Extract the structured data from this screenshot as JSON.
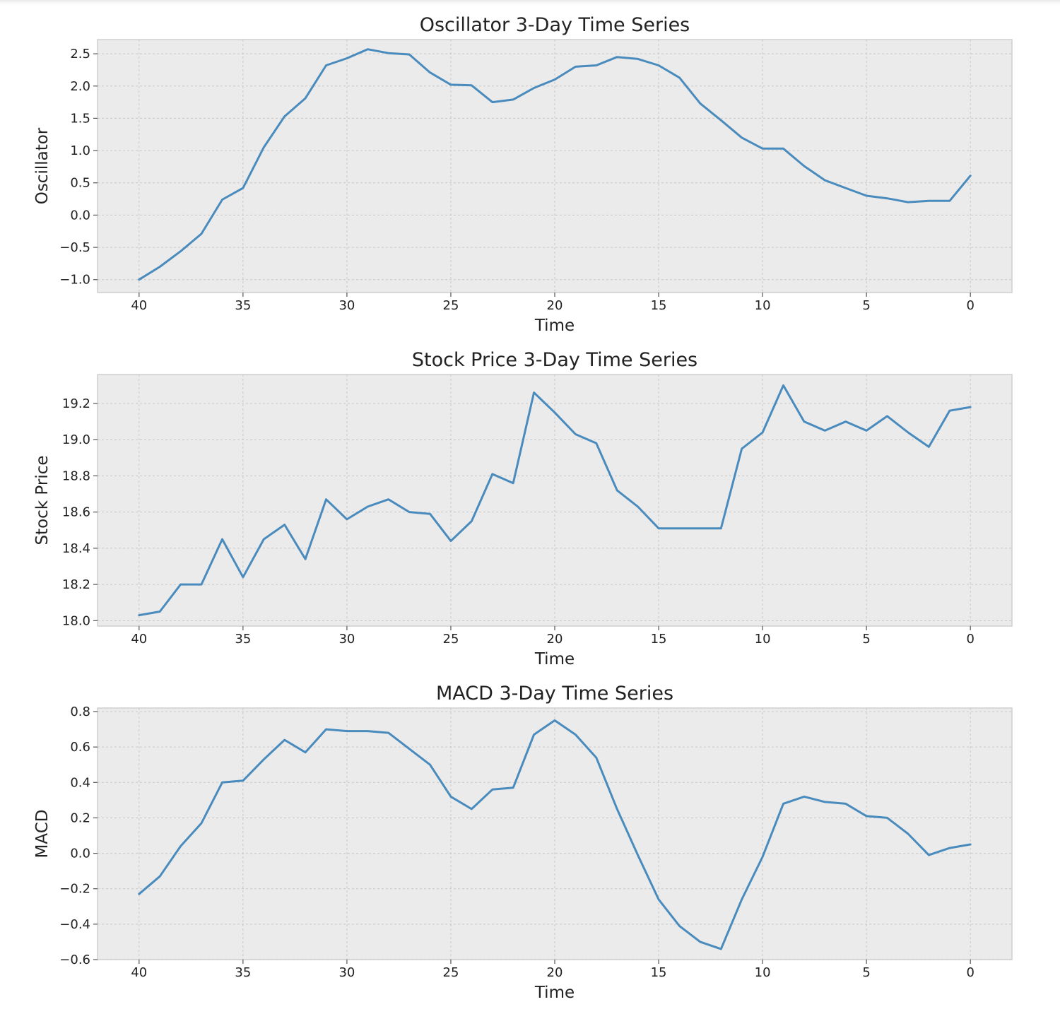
{
  "colors": {
    "series": "#4a8bbd",
    "background": "#ebebeb"
  },
  "chart_data": [
    {
      "type": "line",
      "title": "Oscillator 3-Day Time Series",
      "xlabel": "Time",
      "ylabel": "Oscillator",
      "x_inverted": true,
      "grid": true,
      "xlim": [
        42,
        -2
      ],
      "ylim": [
        -1.2,
        2.72
      ],
      "xticks": [
        40,
        35,
        30,
        25,
        20,
        15,
        10,
        5,
        0
      ],
      "xtick_labels": [
        "40",
        "35",
        "30",
        "25",
        "20",
        "15",
        "10",
        "5",
        "0"
      ],
      "yticks": [
        -1.0,
        -0.5,
        0.0,
        0.5,
        1.0,
        1.5,
        2.0,
        2.5
      ],
      "ytick_labels": [
        "−1.0",
        "−0.5",
        "0.0",
        "0.5",
        "1.0",
        "1.5",
        "2.0",
        "2.5"
      ],
      "x": [
        40,
        39,
        38,
        37,
        36,
        35,
        34,
        33,
        32,
        31,
        30,
        29,
        28,
        27,
        26,
        25,
        24,
        23,
        22,
        21,
        20,
        19,
        18,
        17,
        16,
        15,
        14,
        13,
        12,
        11,
        10,
        9,
        8,
        7,
        6,
        5,
        4,
        3,
        2,
        1,
        0
      ],
      "values": [
        -1.0,
        -0.8,
        -0.56,
        -0.29,
        0.24,
        0.42,
        1.05,
        1.53,
        1.81,
        2.32,
        2.43,
        2.57,
        2.51,
        2.49,
        2.21,
        2.02,
        2.01,
        1.75,
        1.79,
        1.97,
        2.1,
        2.3,
        2.32,
        2.45,
        2.42,
        2.32,
        2.13,
        1.73,
        1.47,
        1.2,
        1.03,
        1.03,
        0.76,
        0.54,
        0.42,
        0.3,
        0.26,
        0.2,
        0.22,
        0.22,
        0.61
      ]
    },
    {
      "type": "line",
      "title": "Stock Price 3-Day Time Series",
      "xlabel": "Time",
      "ylabel": "Stock Price",
      "x_inverted": true,
      "grid": true,
      "xlim": [
        42,
        -2
      ],
      "ylim": [
        17.97,
        19.36
      ],
      "xticks": [
        40,
        35,
        30,
        25,
        20,
        15,
        10,
        5,
        0
      ],
      "xtick_labels": [
        "40",
        "35",
        "30",
        "25",
        "20",
        "15",
        "10",
        "5",
        "0"
      ],
      "yticks": [
        18.0,
        18.2,
        18.4,
        18.6,
        18.8,
        19.0,
        19.2
      ],
      "ytick_labels": [
        "18.0",
        "18.2",
        "18.4",
        "18.6",
        "18.8",
        "19.0",
        "19.2"
      ],
      "x": [
        40,
        39,
        38,
        37,
        36,
        35,
        34,
        33,
        32,
        31,
        30,
        29,
        28,
        27,
        26,
        25,
        24,
        23,
        22,
        21,
        20,
        19,
        18,
        17,
        16,
        15,
        14,
        13,
        12,
        11,
        10,
        9,
        8,
        7,
        6,
        5,
        4,
        3,
        2,
        1,
        0
      ],
      "values": [
        18.03,
        18.05,
        18.2,
        18.2,
        18.45,
        18.24,
        18.45,
        18.53,
        18.34,
        18.67,
        18.56,
        18.63,
        18.67,
        18.6,
        18.59,
        18.44,
        18.55,
        18.81,
        18.76,
        19.26,
        19.15,
        19.03,
        18.98,
        18.72,
        18.63,
        18.51,
        18.51,
        18.51,
        18.51,
        18.95,
        19.04,
        19.3,
        19.1,
        19.05,
        19.1,
        19.05,
        19.13,
        19.04,
        18.96,
        19.16,
        19.18
      ]
    },
    {
      "type": "line",
      "title": "MACD 3-Day Time Series",
      "xlabel": "Time",
      "ylabel": "MACD",
      "x_inverted": true,
      "grid": true,
      "xlim": [
        42,
        -2
      ],
      "ylim": [
        -0.6,
        0.82
      ],
      "xticks": [
        40,
        35,
        30,
        25,
        20,
        15,
        10,
        5,
        0
      ],
      "xtick_labels": [
        "40",
        "35",
        "30",
        "25",
        "20",
        "15",
        "10",
        "5",
        "0"
      ],
      "yticks": [
        -0.6,
        -0.4,
        -0.2,
        0.0,
        0.2,
        0.4,
        0.6,
        0.8
      ],
      "ytick_labels": [
        "−0.6",
        "−0.4",
        "−0.2",
        "0.0",
        "0.2",
        "0.4",
        "0.6",
        "0.8"
      ],
      "x": [
        40,
        39,
        38,
        37,
        36,
        35,
        34,
        33,
        32,
        31,
        30,
        29,
        28,
        27,
        26,
        25,
        24,
        23,
        22,
        21,
        20,
        19,
        18,
        17,
        16,
        15,
        14,
        13,
        12,
        11,
        10,
        9,
        8,
        7,
        6,
        5,
        4,
        3,
        2,
        1,
        0
      ],
      "values": [
        -0.23,
        -0.13,
        0.04,
        0.17,
        0.4,
        0.41,
        0.53,
        0.64,
        0.57,
        0.7,
        0.69,
        0.69,
        0.68,
        0.59,
        0.5,
        0.32,
        0.25,
        0.36,
        0.37,
        0.67,
        0.75,
        0.67,
        0.54,
        0.25,
        -0.01,
        -0.26,
        -0.41,
        -0.5,
        -0.54,
        -0.26,
        -0.02,
        0.28,
        0.32,
        0.29,
        0.28,
        0.21,
        0.2,
        0.11,
        -0.01,
        0.03,
        0.05
      ]
    }
  ]
}
